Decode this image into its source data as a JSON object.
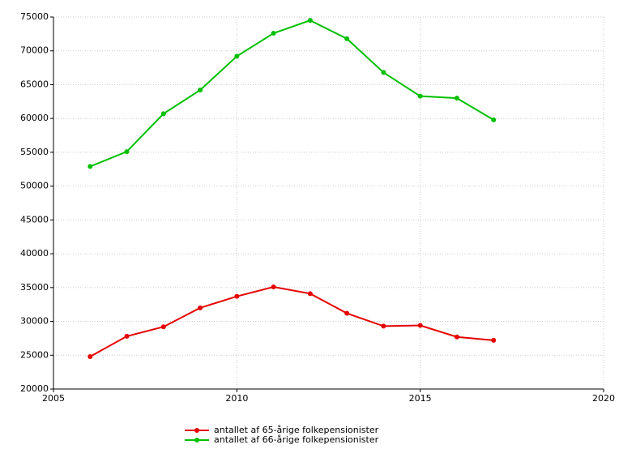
{
  "chart_data": {
    "type": "line",
    "x": [
      2006,
      2007,
      2008,
      2009,
      2010,
      2011,
      2012,
      2013,
      2014,
      2015,
      2016,
      2017
    ],
    "series": [
      {
        "name": "antallet af 65-årige folkepensionister",
        "color": "#e60000",
        "values": [
          24800,
          27800,
          29200,
          32000,
          33700,
          35100,
          34100,
          31200,
          29300,
          29400,
          27700,
          27200
        ]
      },
      {
        "name": "antallet af 66-årige folkepensionister",
        "color": "#00c000",
        "values": [
          52900,
          55100,
          60700,
          64200,
          69200,
          72600,
          74500,
          71800,
          66800,
          63300,
          63000,
          59800
        ]
      }
    ],
    "xlim": [
      2005,
      2020
    ],
    "xticks": [
      2005,
      2010,
      2015,
      2020
    ],
    "ylim": [
      20000,
      75000
    ],
    "yticks": [
      20000,
      25000,
      30000,
      35000,
      40000,
      45000,
      50000,
      55000,
      60000,
      65000,
      70000,
      75000
    ],
    "grid": true,
    "legend": "bottom"
  }
}
